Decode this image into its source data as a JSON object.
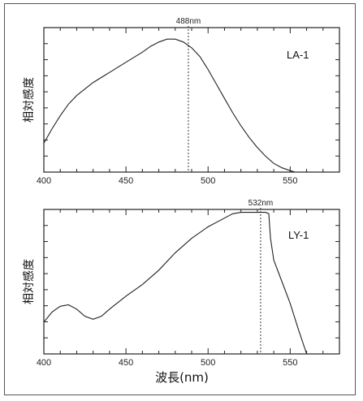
{
  "chart_data": [
    {
      "type": "line",
      "name_label": "LA-1",
      "xlabel": "",
      "ylabel": "相対感度",
      "xlim": [
        400,
        580
      ],
      "ylim": [
        0,
        1
      ],
      "xticks": [
        400,
        450,
        500,
        550
      ],
      "marker": {
        "x": 488,
        "label": "488nm"
      },
      "series": [
        {
          "x": [
            400,
            405,
            410,
            415,
            420,
            430,
            440,
            450,
            460,
            465,
            470,
            475,
            480,
            485,
            490,
            495,
            500,
            505,
            510,
            515,
            520,
            525,
            530,
            535,
            540,
            545,
            550,
            553
          ],
          "y": [
            0.2,
            0.3,
            0.39,
            0.47,
            0.53,
            0.62,
            0.69,
            0.76,
            0.83,
            0.87,
            0.9,
            0.92,
            0.92,
            0.9,
            0.86,
            0.8,
            0.71,
            0.61,
            0.51,
            0.41,
            0.32,
            0.24,
            0.17,
            0.11,
            0.06,
            0.03,
            0.01,
            0.0
          ]
        }
      ]
    },
    {
      "type": "line",
      "name_label": "LY-1",
      "xlabel": "波長(nm)",
      "ylabel": "相対感度",
      "xlim": [
        400,
        580
      ],
      "ylim": [
        0,
        1
      ],
      "xticks": [
        400,
        450,
        500,
        550
      ],
      "marker": {
        "x": 532,
        "label": "532nm"
      },
      "series": [
        {
          "x": [
            400,
            405,
            410,
            415,
            420,
            425,
            430,
            435,
            440,
            450,
            460,
            470,
            480,
            490,
            500,
            510,
            515,
            520,
            525,
            530,
            535,
            537,
            538,
            540,
            545,
            550,
            555,
            560
          ],
          "y": [
            0.22,
            0.29,
            0.33,
            0.34,
            0.31,
            0.26,
            0.24,
            0.26,
            0.31,
            0.4,
            0.48,
            0.58,
            0.7,
            0.8,
            0.88,
            0.94,
            0.97,
            0.98,
            0.98,
            0.98,
            0.98,
            0.97,
            0.8,
            0.65,
            0.5,
            0.35,
            0.17,
            0.0
          ]
        }
      ]
    }
  ]
}
